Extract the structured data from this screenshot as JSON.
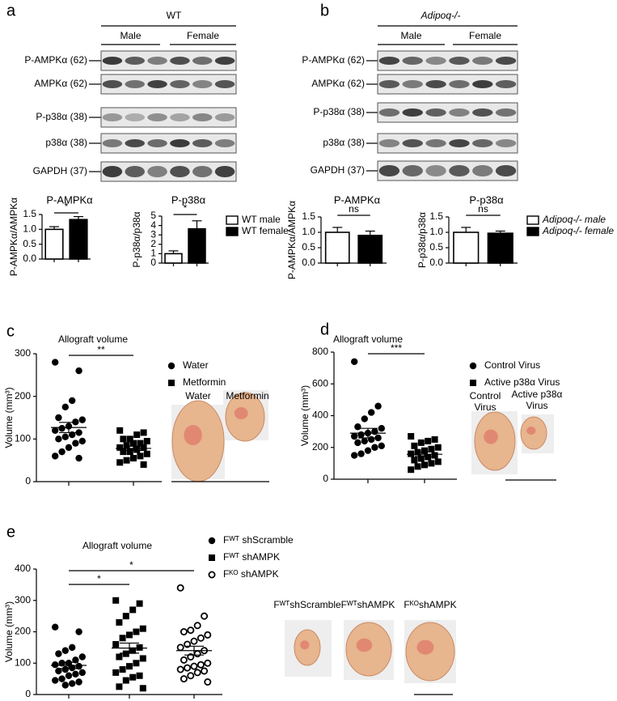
{
  "panel_labels": [
    "a",
    "b",
    "c",
    "d",
    "e"
  ],
  "blots": [
    {
      "title": "WT",
      "groups": [
        "Male",
        "Female"
      ],
      "rows": [
        "P-AMPKα (62)",
        "AMPKα (62)",
        "P-p38α (38)",
        "p38α (38)",
        "GAPDH (37)"
      ]
    },
    {
      "title": "Adipoq-/-",
      "groups": [
        "Male",
        "Female"
      ],
      "rows": [
        "P-AMPKα (62)",
        "AMPKα (62)",
        "P-p38α (38)",
        "p38α (38)",
        "GAPDH (37)"
      ]
    }
  ],
  "photos": [
    {
      "labels": [
        [
          "Water"
        ],
        [
          "Metformin"
        ]
      ]
    },
    {
      "labels": [
        [
          "Control",
          "Virus"
        ],
        [
          "Active p38α",
          "Virus"
        ]
      ]
    },
    {
      "labels": [
        [
          "FᵂᵀshScramble"
        ],
        [
          "FᵂᵀshAMPK"
        ],
        [
          "FᴷᴼshAMPK"
        ]
      ]
    }
  ],
  "chart_data": [
    {
      "type": "bar",
      "title": "P-AMPKα",
      "y_label": "P-AMPKα/AMPKα",
      "values": [
        1.0,
        1.33
      ],
      "errors": [
        0.09,
        0.1
      ],
      "colors": [
        "#ffffff",
        "#000000"
      ],
      "ylim": [
        0,
        1.5
      ],
      "yticks": [
        {
          "value": 0,
          "label": "0.0"
        },
        0.5,
        {
          "value": 1,
          "label": "1.0"
        },
        1.5
      ],
      "significance": [
        "*"
      ]
    },
    {
      "type": "bar",
      "title": "P-p38α",
      "y_label": "P-p38α/p38α",
      "values": [
        1.0,
        3.65
      ],
      "errors": [
        0.3,
        0.85
      ],
      "colors": [
        "#ffffff",
        "#000000"
      ],
      "ylim": [
        0,
        5
      ],
      "yticks": [
        0,
        1,
        2,
        3,
        4,
        5
      ],
      "significance": [
        "*"
      ],
      "legend": [
        "WT male",
        "WT female"
      ]
    },
    {
      "type": "bar",
      "title": "P-AMPKα",
      "y_label": "P-AMPKα/AMPKα",
      "values": [
        1.0,
        0.9
      ],
      "errors": [
        0.16,
        0.14
      ],
      "colors": [
        "#ffffff",
        "#000000"
      ],
      "ylim": [
        0,
        1.5
      ],
      "yticks": [
        {
          "value": 0,
          "label": "0.0"
        },
        0.5,
        {
          "value": 1,
          "label": "1.0"
        },
        1.5
      ],
      "significance": [
        "ns"
      ]
    },
    {
      "type": "bar",
      "title": "P-p38α",
      "y_label": "P-p38α/p38α",
      "values": [
        1.0,
        0.97
      ],
      "errors": [
        0.16,
        0.07
      ],
      "colors": [
        "#ffffff",
        "#000000"
      ],
      "ylim": [
        0,
        1.5
      ],
      "yticks": [
        {
          "value": 0,
          "label": "0.0"
        },
        0.5,
        {
          "value": 1,
          "label": "1.0"
        },
        1.5
      ],
      "significance": [
        "ns"
      ],
      "legend": [
        "Adipoq-/- male",
        "Adipoq-/- female"
      ]
    },
    {
      "type": "dot",
      "title": "Allograft volume",
      "y_label": "Volume (mm³)",
      "ylim": [
        0,
        300
      ],
      "yticks": [
        0,
        100,
        200,
        300
      ],
      "significance": [
        "**"
      ],
      "series": [
        {
          "name": "Water",
          "marker": "circle",
          "mean": 127,
          "sem": 12,
          "values": [
            280,
            260,
            190,
            175,
            150,
            145,
            140,
            130,
            125,
            120,
            115,
            110,
            105,
            100,
            95,
            90,
            80,
            70,
            60,
            55
          ]
        },
        {
          "name": "Metformin",
          "marker": "square",
          "mean": 78,
          "sem": 5,
          "values": [
            120,
            115,
            110,
            100,
            100,
            95,
            90,
            90,
            85,
            80,
            80,
            75,
            70,
            70,
            65,
            60,
            55,
            50,
            45,
            40
          ]
        }
      ]
    },
    {
      "type": "dot",
      "title": "Allograft volume",
      "y_label": "Volume (mm³)",
      "ylim": [
        0,
        800
      ],
      "yticks": [
        0,
        200,
        400,
        600,
        800
      ],
      "significance": [
        "***"
      ],
      "series": [
        {
          "name": "Control Virus",
          "marker": "circle",
          "mean": 290,
          "sem": 30,
          "values": [
            740,
            460,
            420,
            380,
            330,
            320,
            300,
            290,
            280,
            270,
            260,
            250,
            240,
            230,
            210,
            200,
            180,
            160,
            150
          ]
        },
        {
          "name": "Active p38α Virus",
          "marker": "square",
          "mean": 157,
          "sem": 14,
          "values": [
            270,
            250,
            240,
            230,
            210,
            200,
            190,
            180,
            170,
            160,
            150,
            140,
            130,
            120,
            110,
            100,
            90,
            80,
            60
          ]
        }
      ]
    },
    {
      "type": "dot",
      "title": "Allograft volume",
      "y_label": "Volume (mm³)",
      "ylim": [
        0,
        400
      ],
      "yticks": [
        0,
        100,
        200,
        300,
        400
      ],
      "significance": [
        "*",
        "*"
      ],
      "series": [
        {
          "name": "Fᵂᵀ shScramble",
          "marker": "circle",
          "mean": 93,
          "sem": 10,
          "values": [
            215,
            200,
            150,
            140,
            130,
            120,
            110,
            100,
            100,
            95,
            90,
            85,
            80,
            75,
            70,
            65,
            60,
            50,
            45,
            40,
            35,
            30
          ]
        },
        {
          "name": "Fᵂᵀ shAMPK",
          "marker": "square",
          "mean": 148,
          "sem": 16,
          "values": [
            300,
            290,
            270,
            250,
            230,
            210,
            200,
            190,
            180,
            160,
            150,
            140,
            130,
            120,
            115,
            100,
            90,
            80,
            70,
            60,
            55,
            45,
            25,
            20
          ]
        },
        {
          "name": "Fᴷᴼ shAMPK",
          "marker": "open-circle",
          "mean": 140,
          "sem": 14,
          "values": [
            340,
            250,
            220,
            205,
            200,
            190,
            180,
            170,
            160,
            150,
            140,
            130,
            120,
            110,
            100,
            95,
            90,
            85,
            80,
            75,
            70,
            60,
            50,
            40
          ]
        }
      ]
    }
  ]
}
